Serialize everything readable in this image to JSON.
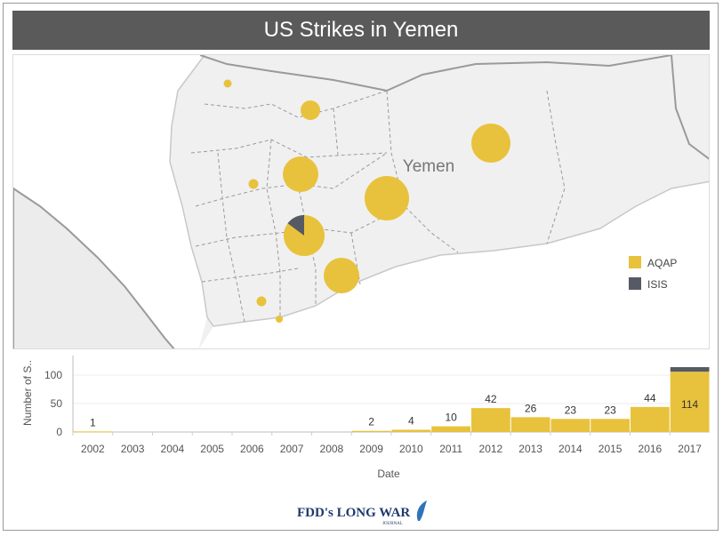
{
  "title": "US Strikes in Yemen",
  "map": {
    "country_label": "Yemen",
    "legend": [
      {
        "label": "AQAP",
        "color": "#e8c23c"
      },
      {
        "label": "ISIS",
        "color": "#555a64"
      }
    ]
  },
  "chart_data": {
    "type": "bar",
    "categories": [
      "2002",
      "2003",
      "2004",
      "2005",
      "2006",
      "2007",
      "2008",
      "2009",
      "2010",
      "2011",
      "2012",
      "2013",
      "2014",
      "2015",
      "2016",
      "2017"
    ],
    "series": [
      {
        "name": "AQAP",
        "values": [
          1,
          0,
          0,
          0,
          0,
          0,
          0,
          2,
          4,
          10,
          42,
          26,
          23,
          23,
          44,
          106
        ],
        "color": "#e8c23c"
      },
      {
        "name": "ISIS",
        "values": [
          0,
          0,
          0,
          0,
          0,
          0,
          0,
          0,
          0,
          0,
          0,
          0,
          0,
          0,
          0,
          8
        ],
        "color": "#555a64"
      }
    ],
    "data_labels": [
      "1",
      "",
      "",
      "",
      "",
      "",
      "",
      "2",
      "4",
      "10",
      "42",
      "26",
      "23",
      "23",
      "44",
      "114"
    ],
    "y_ticks": [
      "0",
      "50",
      "100"
    ],
    "ylabel": "Number of S..",
    "xlabel": "Date",
    "ylim": [
      0,
      125
    ]
  },
  "footer": {
    "logo_text": "FDD's LONG WAR",
    "logo_subtext": "JOURNAL"
  }
}
